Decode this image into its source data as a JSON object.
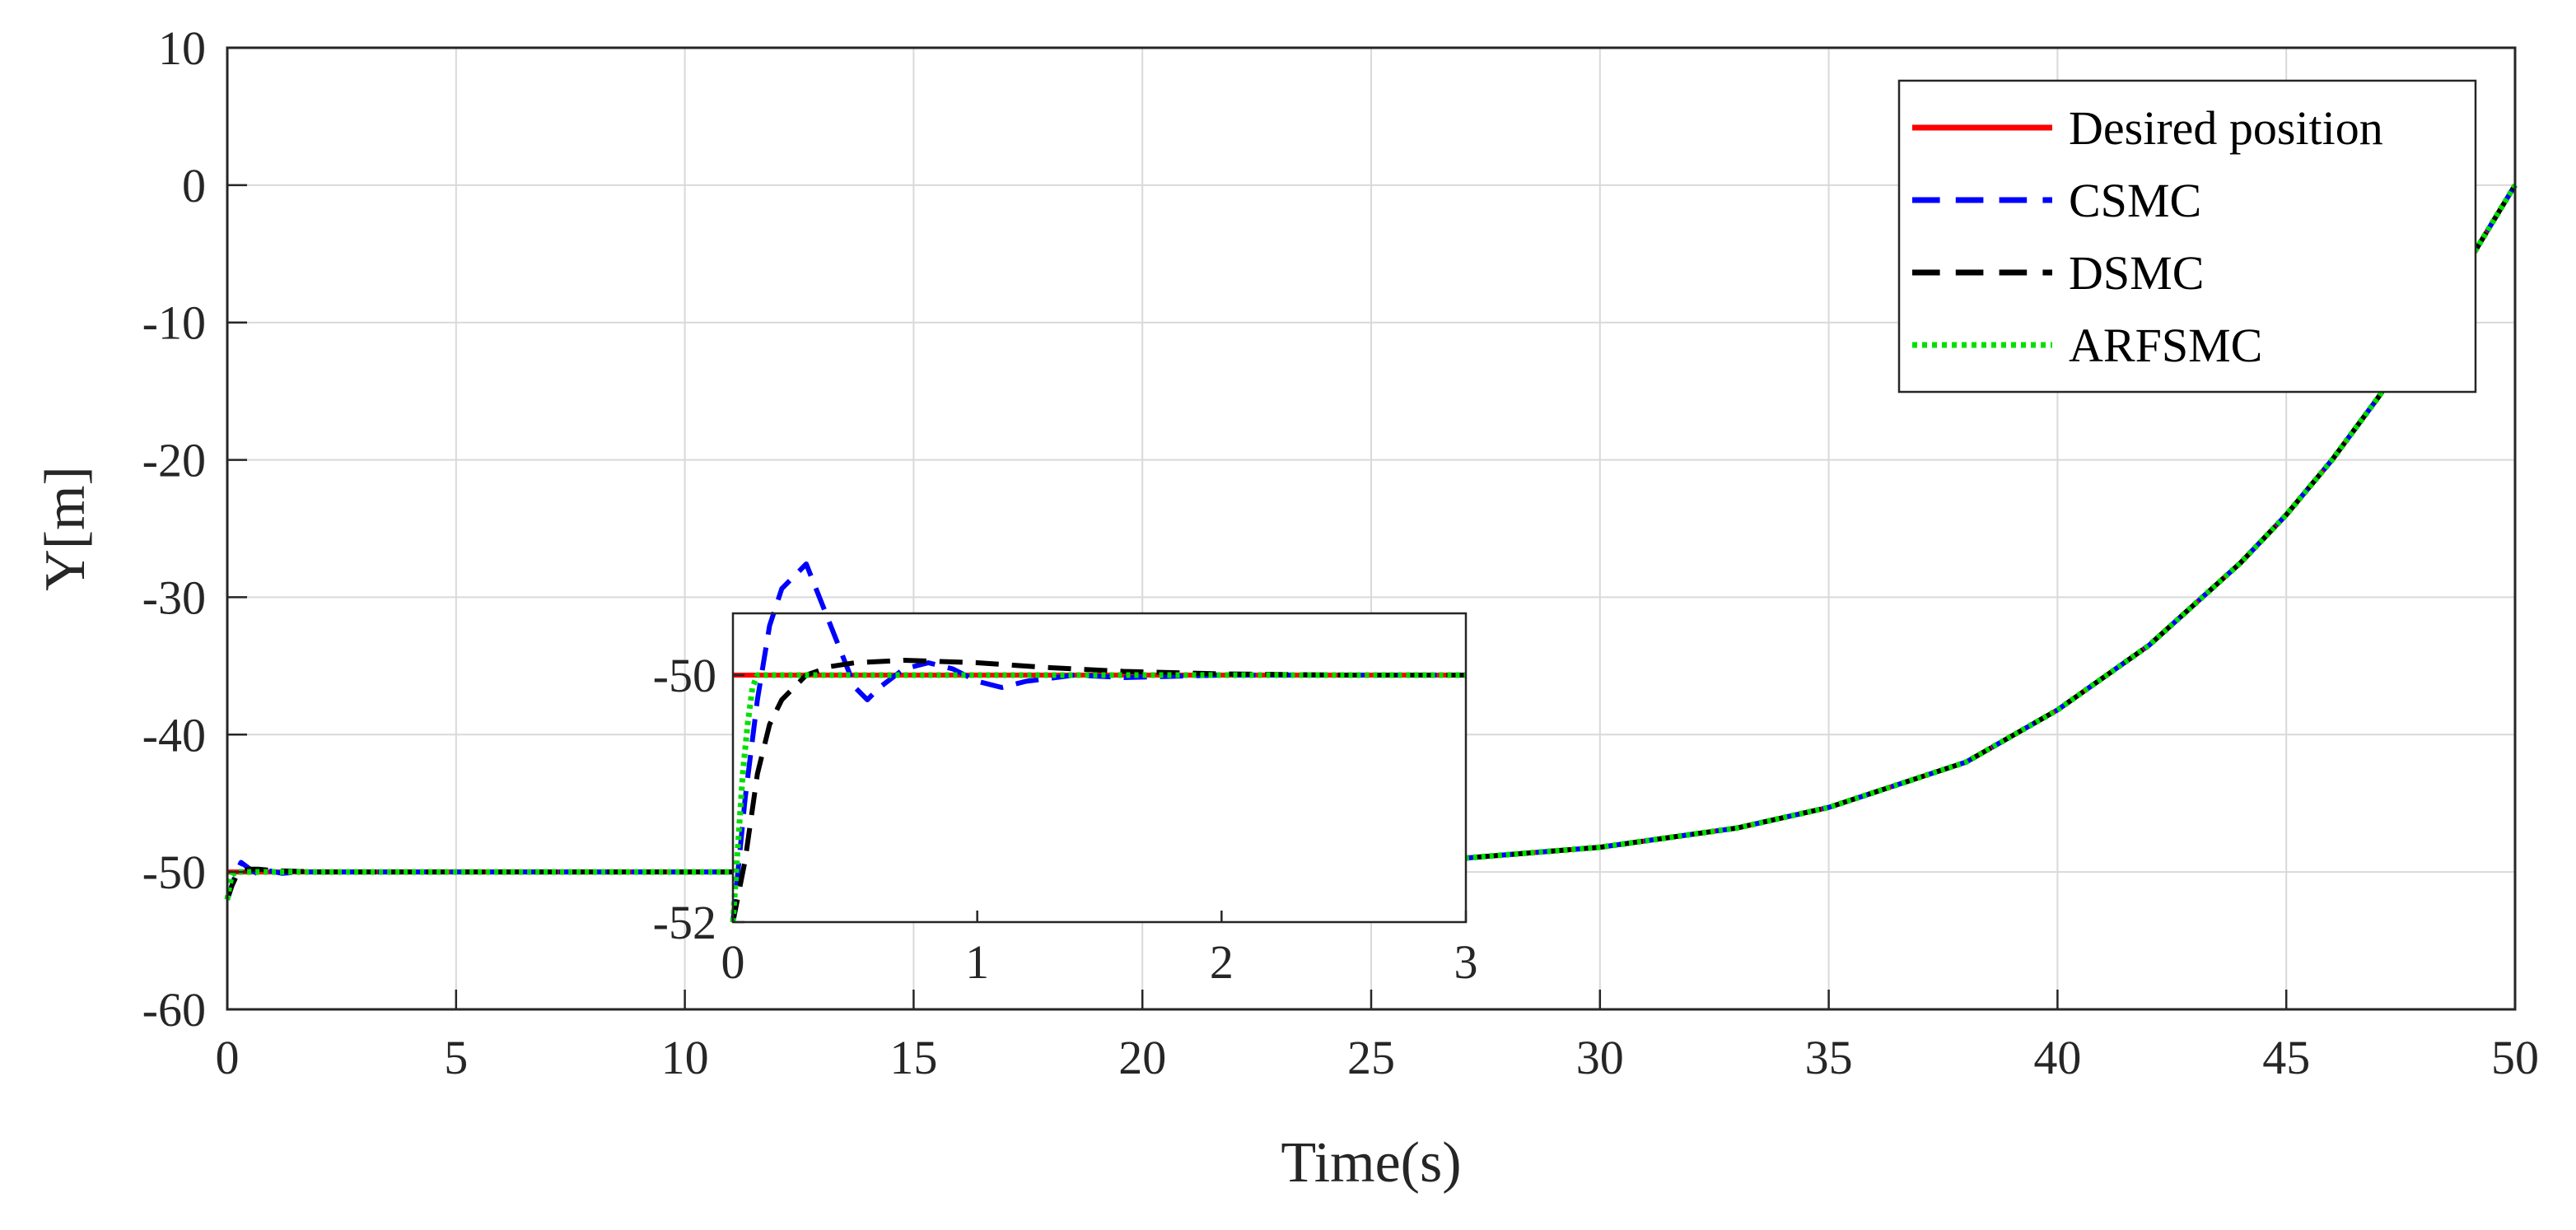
{
  "chart_data": [
    {
      "type": "line",
      "title": "",
      "xlabel": "Time(s)",
      "ylabel": "Y[m]",
      "xlim": [
        0,
        50
      ],
      "ylim": [
        -60,
        10
      ],
      "xticks": [
        "0",
        "5",
        "10",
        "15",
        "20",
        "25",
        "30",
        "35",
        "40",
        "45",
        "50"
      ],
      "yticks": [
        "10",
        "0",
        "-10",
        "-20",
        "-30",
        "-40",
        "-50",
        "-60"
      ],
      "grid": true,
      "legend_position": "top-right",
      "series": [
        {
          "name": "Desired position",
          "color": "#ff0000",
          "style": "solid",
          "x": [
            0,
            5,
            10,
            11,
            15,
            20,
            25,
            27,
            30,
            33,
            35,
            38,
            40,
            42,
            44,
            45,
            46,
            47,
            48,
            49,
            50
          ],
          "y": [
            -50,
            -50,
            -50,
            -50,
            -50,
            -50,
            -50,
            -49,
            -48.2,
            -46.8,
            -45.3,
            -42,
            -38.2,
            -33.5,
            -27.5,
            -24,
            -20,
            -15.5,
            -10.5,
            -5.5,
            0
          ]
        },
        {
          "name": "CSMC",
          "color": "#0000ff",
          "style": "dashed",
          "x": [
            0,
            0.1,
            0.2,
            0.3,
            0.5,
            0.7,
            0.9,
            1.2,
            1.6,
            2,
            3,
            5,
            10,
            11,
            15,
            20,
            25,
            27,
            30,
            33,
            35,
            38,
            40,
            42,
            44,
            45,
            46,
            47,
            48,
            49,
            50
          ],
          "y": [
            -52,
            -51,
            -50,
            -49.3,
            -49.8,
            -50.2,
            -49.9,
            -50.1,
            -50,
            -50,
            -50,
            -50,
            -50,
            -50,
            -50,
            -50,
            -50,
            -49,
            -48.2,
            -46.8,
            -45.3,
            -42,
            -38.2,
            -33.5,
            -27.5,
            -24,
            -20,
            -15.5,
            -10.5,
            -5.5,
            0
          ]
        },
        {
          "name": "DSMC",
          "color": "#000000",
          "style": "dashed",
          "x": [
            0,
            0.1,
            0.2,
            0.3,
            0.5,
            0.7,
            1,
            2,
            3,
            5,
            10,
            11,
            15,
            20,
            25,
            27,
            30,
            33,
            35,
            38,
            40,
            42,
            44,
            45,
            46,
            47,
            48,
            49,
            50
          ],
          "y": [
            -52,
            -51,
            -50.3,
            -49.9,
            -49.8,
            -49.8,
            -49.9,
            -50,
            -50,
            -50,
            -50,
            -50,
            -50,
            -50,
            -50,
            -49,
            -48.2,
            -46.8,
            -45.3,
            -42,
            -38.2,
            -33.5,
            -27.5,
            -24,
            -20,
            -15.5,
            -10.5,
            -5.5,
            0
          ]
        },
        {
          "name": "ARFSMC",
          "color": "#00e000",
          "style": "dotted",
          "x": [
            0,
            0.05,
            0.1,
            0.2,
            0.5,
            1,
            2,
            3,
            5,
            10,
            11,
            15,
            20,
            25,
            27,
            30,
            33,
            35,
            38,
            40,
            42,
            44,
            45,
            46,
            47,
            48,
            49,
            50
          ],
          "y": [
            -52,
            -51,
            -50.2,
            -50,
            -50,
            -50,
            -50,
            -50,
            -50,
            -50,
            -50,
            -50,
            -50,
            -50,
            -49,
            -48.2,
            -46.8,
            -45.3,
            -42,
            -38.2,
            -33.5,
            -27.5,
            -24,
            -20,
            -15.5,
            -10.5,
            -5.5,
            0
          ]
        }
      ]
    },
    {
      "type": "line",
      "title": "",
      "xlabel": "",
      "ylabel": "",
      "xlim": [
        0,
        3
      ],
      "ylim": [
        -52,
        -49.5
      ],
      "xticks": [
        "0",
        "1",
        "2",
        "3"
      ],
      "yticks": [
        "-50",
        "-52"
      ],
      "grid": false,
      "series": [
        {
          "color": "#ff0000",
          "style": "solid",
          "x": [
            0,
            3
          ],
          "y": [
            -50,
            -50
          ]
        },
        {
          "color": "#0000ff",
          "style": "dashed",
          "x": [
            0,
            0.05,
            0.1,
            0.15,
            0.2,
            0.3,
            0.4,
            0.5,
            0.55,
            0.6,
            0.7,
            0.8,
            0.9,
            1,
            1.1,
            1.2,
            1.4,
            1.6,
            2,
            2.5,
            3
          ],
          "y": [
            -52,
            -51,
            -50.2,
            -49.6,
            -49.3,
            -49.1,
            -49.6,
            -50.1,
            -50.2,
            -50.1,
            -49.95,
            -49.9,
            -49.95,
            -50.05,
            -50.1,
            -50.05,
            -50,
            -50.02,
            -50,
            -50,
            -50
          ]
        },
        {
          "color": "#000000",
          "style": "dashed",
          "x": [
            0,
            0.05,
            0.1,
            0.15,
            0.2,
            0.3,
            0.4,
            0.5,
            0.7,
            1,
            1.3,
            1.6,
            2,
            2.5,
            3
          ],
          "y": [
            -52,
            -51.5,
            -50.8,
            -50.4,
            -50.2,
            -50,
            -49.93,
            -49.9,
            -49.88,
            -49.9,
            -49.94,
            -49.97,
            -49.99,
            -50,
            -50
          ]
        },
        {
          "color": "#00e000",
          "style": "dotted",
          "x": [
            0,
            0.02,
            0.04,
            0.06,
            0.08,
            0.1,
            0.15,
            0.2,
            0.5,
            1,
            2,
            3
          ],
          "y": [
            -52,
            -51.4,
            -50.8,
            -50.4,
            -50.1,
            -50,
            -50,
            -50,
            -50,
            -50,
            -50,
            -50
          ]
        }
      ]
    }
  ]
}
